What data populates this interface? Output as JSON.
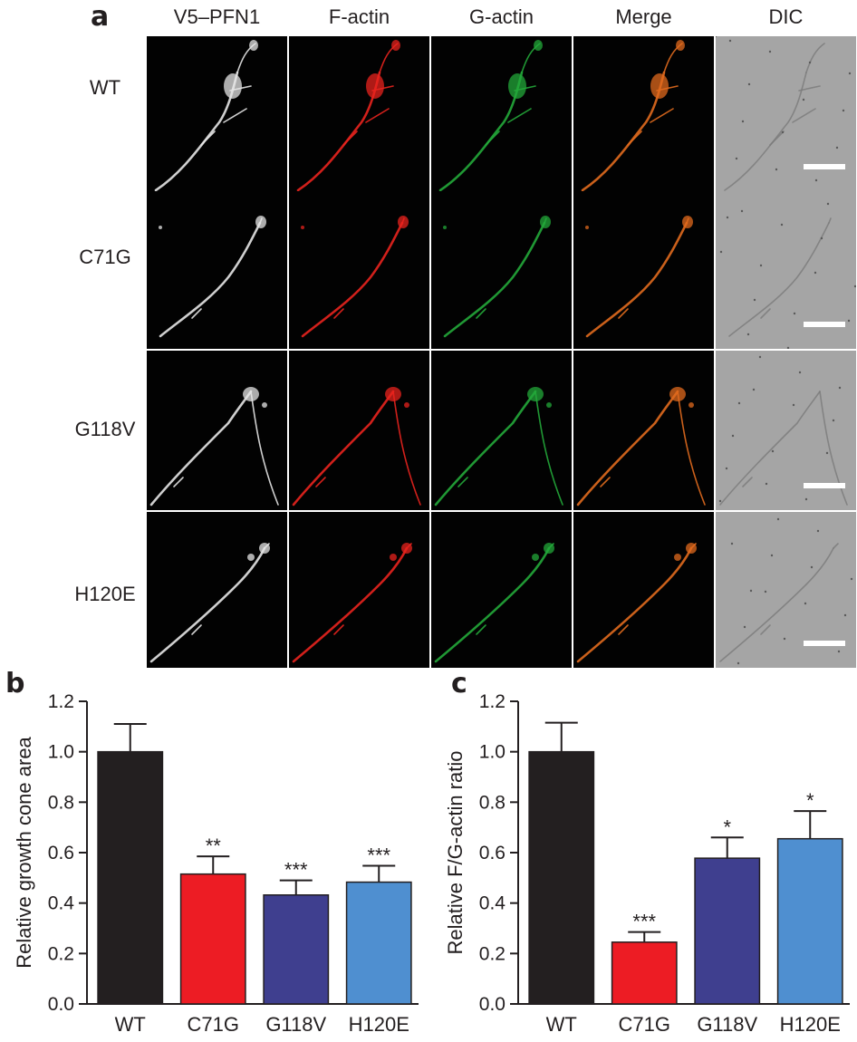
{
  "figure": {
    "panel_labels": {
      "a": "a",
      "b": "b",
      "c": "c"
    },
    "panel_a": {
      "columns": [
        "V5–PFN1",
        "F-actin",
        "G-actin",
        "Merge",
        "DIC"
      ],
      "rows": [
        "WT",
        "C71G",
        "G118V",
        "H120E"
      ],
      "channel_colors": {
        "V5–PFN1": "#e6e6e6",
        "F-actin": "#e8231e",
        "G-actin": "#23a83a",
        "Merge": "#e06a1e",
        "DIC": "#a5a5a5"
      }
    }
  },
  "chart_data": [
    {
      "type": "bar",
      "categories": [
        "WT",
        "C71G",
        "G118V",
        "H120E"
      ],
      "values": [
        1.0,
        0.515,
        0.432,
        0.483
      ],
      "errors": [
        0.11,
        0.07,
        0.058,
        0.065
      ],
      "significance": [
        "",
        "**",
        "***",
        "***"
      ],
      "colors": [
        "#231f20",
        "#ed1c24",
        "#3f3f8f",
        "#4f8fd0"
      ],
      "ylabel": "Relative growth cone area",
      "ylim": [
        0,
        1.2
      ],
      "yticks": [
        "0.0",
        "0.2",
        "0.4",
        "0.6",
        "0.8",
        "1.0",
        "1.2"
      ]
    },
    {
      "type": "bar",
      "categories": [
        "WT",
        "C71G",
        "G118V",
        "H120E"
      ],
      "values": [
        1.0,
        0.245,
        0.578,
        0.655
      ],
      "errors": [
        0.115,
        0.04,
        0.082,
        0.11
      ],
      "significance": [
        "",
        "***",
        "*",
        "*"
      ],
      "colors": [
        "#231f20",
        "#ed1c24",
        "#3f3f8f",
        "#4f8fd0"
      ],
      "ylabel": "Relative F/G-actin ratio",
      "ylim": [
        0,
        1.2
      ],
      "yticks": [
        "0.0",
        "0.2",
        "0.4",
        "0.6",
        "0.8",
        "1.0",
        "1.2"
      ]
    }
  ]
}
